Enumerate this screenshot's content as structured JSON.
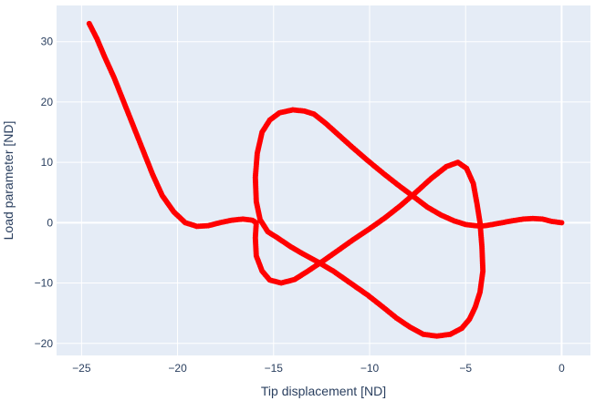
{
  "chart_data": {
    "type": "scatter",
    "mode": "lines+markers",
    "title": "",
    "xlabel": "Tip displacement [ND]",
    "ylabel": "Load parameter [ND]",
    "xlim": [
      -26.3,
      1.5
    ],
    "ylim": [
      -22.0,
      36.0
    ],
    "xticks": [
      -25,
      -20,
      -15,
      -10,
      -5,
      0
    ],
    "xtick_labels": [
      "−25",
      "−20",
      "−15",
      "−10",
      "−5",
      "0"
    ],
    "yticks": [
      -20,
      -10,
      0,
      10,
      20,
      30
    ],
    "ytick_labels": [
      "−20",
      "−10",
      "0",
      "10",
      "20",
      "30"
    ],
    "grid": true,
    "legend": "none",
    "colors": {
      "series": "#ff0000",
      "plot_bg": "#e5ecf6",
      "grid": "#ffffff",
      "text": "#2a3f5f"
    },
    "series": [
      {
        "x": [
          -24.6,
          -24.2,
          -23.8,
          -23.3,
          -22.8,
          -22.3,
          -21.8,
          -21.3,
          -20.8,
          -20.2,
          -19.6,
          -19.0,
          -18.4,
          -17.8,
          -17.2,
          -16.6,
          -16.1,
          -15.9,
          -15.95,
          -15.9,
          -15.6,
          -15.2,
          -14.6,
          -13.9,
          -13.2,
          -12.4,
          -11.6,
          -10.8,
          -10.0,
          -9.2,
          -8.4,
          -7.6,
          -6.8,
          -6.0,
          -5.4,
          -4.95,
          -4.6,
          -4.4,
          -4.25,
          -4.15,
          -4.1,
          -4.25,
          -4.5,
          -4.8,
          -5.2,
          -5.8,
          -6.5,
          -7.2,
          -7.9,
          -8.6,
          -9.3,
          -10.1,
          -11.0,
          -11.9,
          -12.7,
          -13.4,
          -14.1,
          -14.8,
          -15.3,
          -15.7,
          -15.9,
          -15.95,
          -15.85,
          -15.6,
          -15.2,
          -14.7,
          -14.0,
          -13.4,
          -12.9,
          -12.3,
          -11.6,
          -10.9,
          -10.1,
          -9.3,
          -8.5,
          -7.7,
          -7.0,
          -6.3,
          -5.6,
          -5.0,
          -4.5,
          -4.2,
          -4.0,
          -3.6,
          -3.1,
          -2.6,
          -2.0,
          -1.5,
          -1.0,
          -0.5,
          0.0
        ],
        "y": [
          33.0,
          30.5,
          27.5,
          24.0,
          20.0,
          16.0,
          12.0,
          8.0,
          4.5,
          1.8,
          0.0,
          -0.6,
          -0.5,
          0.0,
          0.4,
          0.6,
          0.4,
          0.0,
          -2.5,
          -5.5,
          -8.0,
          -9.5,
          -10.0,
          -9.4,
          -8.0,
          -6.3,
          -4.5,
          -2.7,
          -1.0,
          0.8,
          2.8,
          5.0,
          7.3,
          9.3,
          10.0,
          9.0,
          6.5,
          3.0,
          0.0,
          -4.0,
          -8.0,
          -11.5,
          -14.0,
          -16.0,
          -17.5,
          -18.5,
          -18.8,
          -18.5,
          -17.3,
          -15.8,
          -14.0,
          -12.0,
          -10.0,
          -8.0,
          -6.5,
          -5.3,
          -4.0,
          -2.5,
          -1.5,
          0.5,
          3.5,
          7.5,
          11.5,
          15.0,
          17.0,
          18.2,
          18.7,
          18.5,
          18.0,
          16.5,
          14.5,
          12.5,
          10.3,
          8.2,
          6.2,
          4.3,
          2.6,
          1.3,
          0.3,
          -0.3,
          -0.5,
          -0.55,
          -0.5,
          -0.3,
          0.0,
          0.3,
          0.6,
          0.7,
          0.6,
          0.2,
          0.0
        ]
      }
    ]
  }
}
